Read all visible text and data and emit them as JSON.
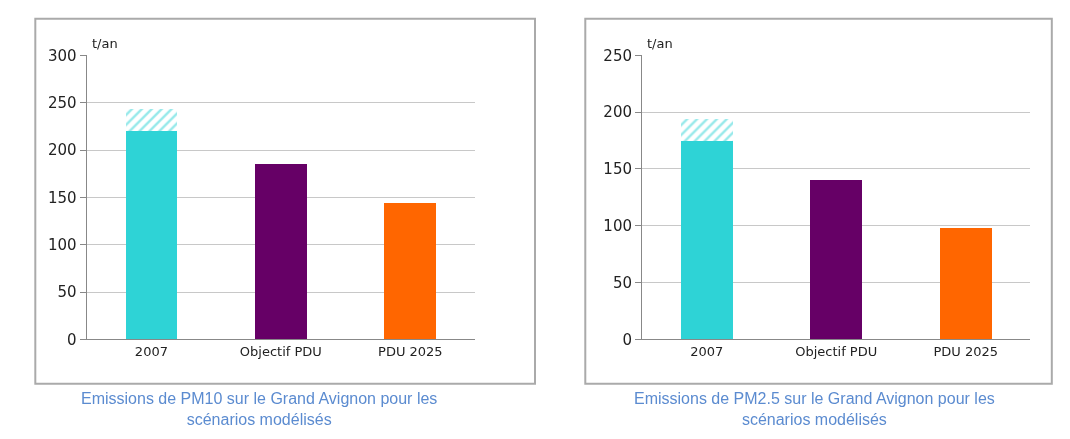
{
  "chart_data": [
    {
      "type": "bar",
      "stacked": true,
      "ylabel": "t/an",
      "categories": [
        "2007",
        "Objectif PDU",
        "PDU 2025"
      ],
      "ylim": [
        0,
        300
      ],
      "yticks": [
        0,
        50,
        100,
        150,
        200,
        250,
        300
      ],
      "grid": "y",
      "series": [
        {
          "colors": [
            "#2ed3d6",
            "#660066",
            "#ff6600"
          ],
          "values": [
            220,
            185,
            144
          ]
        },
        {
          "color": "#2ed3d6",
          "values": [
            23,
            null,
            null
          ]
        }
      ],
      "annotations": [
        "Emissions de PM10 sur le Grand Avignon pour les scénarios modélisés"
      ]
    },
    {
      "type": "bar",
      "stacked": true,
      "ylabel": "t/an",
      "categories": [
        "2007",
        "Objectif PDU",
        "PDU 2025"
      ],
      "ylim": [
        0,
        250
      ],
      "yticks": [
        0,
        50,
        100,
        150,
        200,
        250
      ],
      "grid": "y",
      "series": [
        {
          "colors": [
            "#2ed3d6",
            "#660066",
            "#ff6600"
          ],
          "values": [
            175,
            140,
            98
          ]
        },
        {
          "color": "#2ed3d6",
          "values": [
            19,
            null,
            null
          ]
        }
      ],
      "annotations": [
        "Emissions de PM2.5 sur le Grand Avignon pour les scénarios modélisés"
      ]
    }
  ]
}
